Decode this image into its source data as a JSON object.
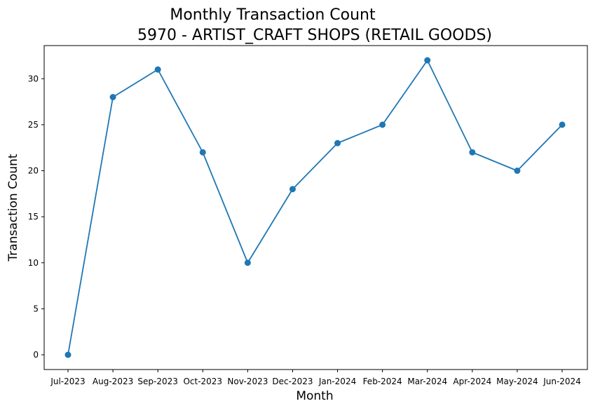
{
  "chart_data": {
    "type": "line",
    "title": "Monthly Transaction Count",
    "subtitle": "5970 - ARTIST_CRAFT SHOPS (RETAIL GOODS)",
    "xlabel": "Month",
    "ylabel": "Transaction Count",
    "categories": [
      "Jul-2023",
      "Aug-2023",
      "Sep-2023",
      "Oct-2023",
      "Nov-2023",
      "Dec-2023",
      "Jan-2024",
      "Feb-2024",
      "Mar-2024",
      "Apr-2024",
      "May-2024",
      "Jun-2024"
    ],
    "series": [
      {
        "values": [
          0,
          28,
          31,
          22,
          10,
          18,
          23,
          25,
          32,
          22,
          20,
          25
        ],
        "color": "#1f77b4",
        "marker": "circle"
      }
    ],
    "ylim": [
      -1.6,
      33.6
    ],
    "yticks": [
      0,
      5,
      10,
      15,
      20,
      25,
      30
    ],
    "grid": false,
    "legend": "none"
  }
}
